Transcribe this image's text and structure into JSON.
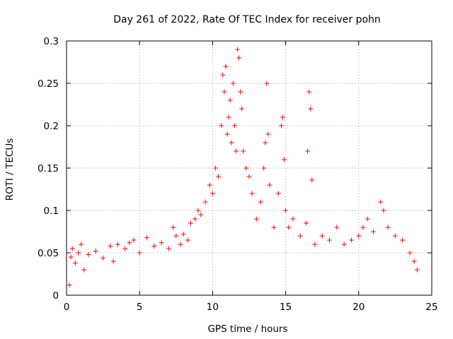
{
  "chart_data": {
    "type": "scatter",
    "title": "Day 261 of 2022, Rate Of TEC Index for receiver pohn",
    "xlabel": "GPS time / hours",
    "ylabel": "ROTI / TECUs",
    "xlim": [
      0,
      25
    ],
    "ylim": [
      0,
      0.3
    ],
    "xticks": [
      0,
      5,
      10,
      15,
      20,
      25
    ],
    "xtick_labels": [
      "0",
      "5",
      "10",
      "15",
      "20",
      "25"
    ],
    "yticks": [
      0,
      0.05,
      0.1,
      0.15,
      0.2,
      0.25,
      0.3
    ],
    "ytick_labels": [
      "0",
      "0.05",
      "0.1",
      "0.15",
      "0.2",
      "0.25",
      "0.3"
    ],
    "grid": true,
    "marker": "+",
    "color": "#ff0000",
    "series": [
      {
        "name": "ROTI",
        "points": [
          [
            0.2,
            0.012
          ],
          [
            0.3,
            0.045
          ],
          [
            0.4,
            0.055
          ],
          [
            0.6,
            0.038
          ],
          [
            0.8,
            0.05
          ],
          [
            1.0,
            0.06
          ],
          [
            1.2,
            0.03
          ],
          [
            1.5,
            0.048
          ],
          [
            2.0,
            0.052
          ],
          [
            2.5,
            0.044
          ],
          [
            3.0,
            0.058
          ],
          [
            3.2,
            0.04
          ],
          [
            3.5,
            0.06
          ],
          [
            4.0,
            0.055
          ],
          [
            4.3,
            0.062
          ],
          [
            4.6,
            0.065
          ],
          [
            5.0,
            0.05
          ],
          [
            5.5,
            0.068
          ],
          [
            6.0,
            0.058
          ],
          [
            6.5,
            0.062
          ],
          [
            7.0,
            0.055
          ],
          [
            7.3,
            0.08
          ],
          [
            7.5,
            0.07
          ],
          [
            7.8,
            0.06
          ],
          [
            8.0,
            0.072
          ],
          [
            8.3,
            0.065
          ],
          [
            8.5,
            0.085
          ],
          [
            8.8,
            0.09
          ],
          [
            9.0,
            0.1
          ],
          [
            9.2,
            0.095
          ],
          [
            9.5,
            0.11
          ],
          [
            9.8,
            0.13
          ],
          [
            10.0,
            0.12
          ],
          [
            10.2,
            0.15
          ],
          [
            10.4,
            0.14
          ],
          [
            10.6,
            0.2
          ],
          [
            10.7,
            0.26
          ],
          [
            10.8,
            0.24
          ],
          [
            10.9,
            0.27
          ],
          [
            11.0,
            0.19
          ],
          [
            11.1,
            0.21
          ],
          [
            11.2,
            0.23
          ],
          [
            11.3,
            0.18
          ],
          [
            11.4,
            0.25
          ],
          [
            11.5,
            0.2
          ],
          [
            11.6,
            0.17
          ],
          [
            11.7,
            0.29
          ],
          [
            11.8,
            0.28
          ],
          [
            11.9,
            0.24
          ],
          [
            12.0,
            0.22
          ],
          [
            12.1,
            0.17
          ],
          [
            12.3,
            0.15
          ],
          [
            12.5,
            0.14
          ],
          [
            12.7,
            0.12
          ],
          [
            13.0,
            0.09
          ],
          [
            13.3,
            0.11
          ],
          [
            13.5,
            0.15
          ],
          [
            13.6,
            0.18
          ],
          [
            13.7,
            0.25
          ],
          [
            13.8,
            0.19
          ],
          [
            13.9,
            0.13
          ],
          [
            14.2,
            0.08
          ],
          [
            14.5,
            0.12
          ],
          [
            14.7,
            0.2
          ],
          [
            14.8,
            0.21
          ],
          [
            14.9,
            0.16
          ],
          [
            15.0,
            0.1
          ],
          [
            15.2,
            0.08
          ],
          [
            15.5,
            0.09
          ],
          [
            16.0,
            0.07
          ],
          [
            16.4,
            0.085
          ],
          [
            16.5,
            0.17
          ],
          [
            16.6,
            0.24
          ],
          [
            16.7,
            0.22
          ],
          [
            16.8,
            0.136
          ],
          [
            17.0,
            0.06
          ],
          [
            17.5,
            0.07
          ],
          [
            18.0,
            0.065
          ],
          [
            18.5,
            0.08
          ],
          [
            19.0,
            0.06
          ],
          [
            19.5,
            0.065
          ],
          [
            20.0,
            0.07
          ],
          [
            20.3,
            0.08
          ],
          [
            20.6,
            0.09
          ],
          [
            21.0,
            0.075
          ],
          [
            21.5,
            0.11
          ],
          [
            21.7,
            0.1
          ],
          [
            22.0,
            0.08
          ],
          [
            22.5,
            0.07
          ],
          [
            23.0,
            0.065
          ],
          [
            23.5,
            0.05
          ],
          [
            23.8,
            0.04
          ],
          [
            24.0,
            0.03
          ]
        ]
      }
    ]
  }
}
